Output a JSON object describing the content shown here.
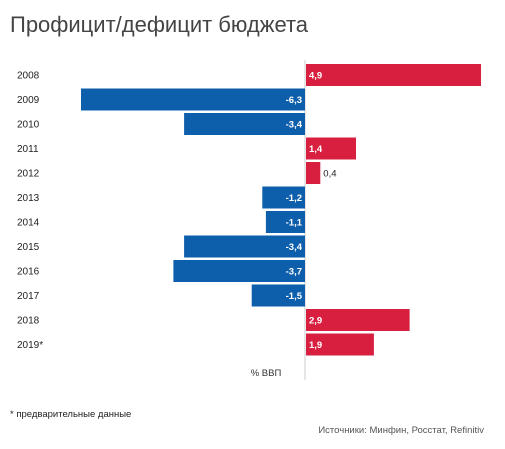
{
  "chart_data": {
    "type": "bar",
    "orientation": "horizontal",
    "title": "Профицит/дефицит бюджета",
    "categories": [
      "2008",
      "2009",
      "2010",
      "2011",
      "2012",
      "2013",
      "2014",
      "2015",
      "2016",
      "2017",
      "2018",
      "2019*"
    ],
    "values": [
      4.9,
      -6.3,
      -3.4,
      1.4,
      0.4,
      -1.2,
      -1.1,
      -3.4,
      -3.7,
      -1.5,
      2.9,
      1.9
    ],
    "value_labels": [
      "4,9",
      "-6,3",
      "-3,4",
      "1,4",
      "0,4",
      "-1,2",
      "-1,1",
      "-3,4",
      "-3,7",
      "-1,5",
      "2,9",
      "1,9"
    ],
    "xlabel": "% ВВП",
    "ylabel": "",
    "xlim": [
      -6.3,
      4.9
    ],
    "grid": false,
    "legend": "none",
    "colors": {
      "positive": "#d81f3f",
      "negative": "#0e5fab",
      "axis": "#cccccc"
    }
  },
  "footnote": "* предварительные данные",
  "sources": "Источники: Минфин, Росстат, Refinitiv"
}
